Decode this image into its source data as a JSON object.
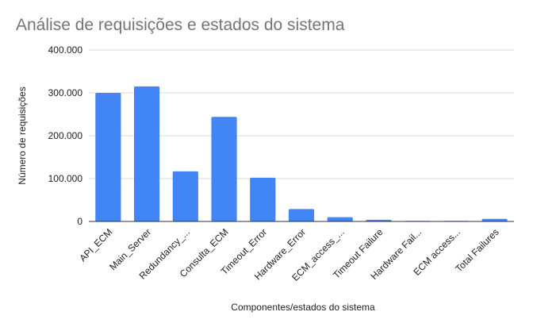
{
  "chart_data": {
    "type": "bar",
    "title": "Análise de requisições e estados do sistema",
    "xlabel": "Componentes/estados do sistema",
    "ylabel": "Número de requisições",
    "ylim": [
      0,
      400000
    ],
    "y_ticks": [
      0,
      100000,
      200000,
      300000,
      400000
    ],
    "y_tick_labels": [
      "0",
      "100.000",
      "200.000",
      "300.000",
      "400.000"
    ],
    "categories": [
      "API_ECM",
      "Main_Server",
      "Redundancy_...",
      "Consulta_ECM",
      "Timeout_Error",
      "Hardware_Error",
      "ECM_access_...",
      "Timeout Failure",
      "Hardware Fail...",
      "ECM access...",
      "Total Failures"
    ],
    "values": [
      300000,
      315000,
      117000,
      244000,
      102000,
      29000,
      10000,
      4000,
      1000,
      1000,
      6000
    ],
    "bar_color": "#4285f4",
    "grid": true,
    "legend": "none"
  }
}
